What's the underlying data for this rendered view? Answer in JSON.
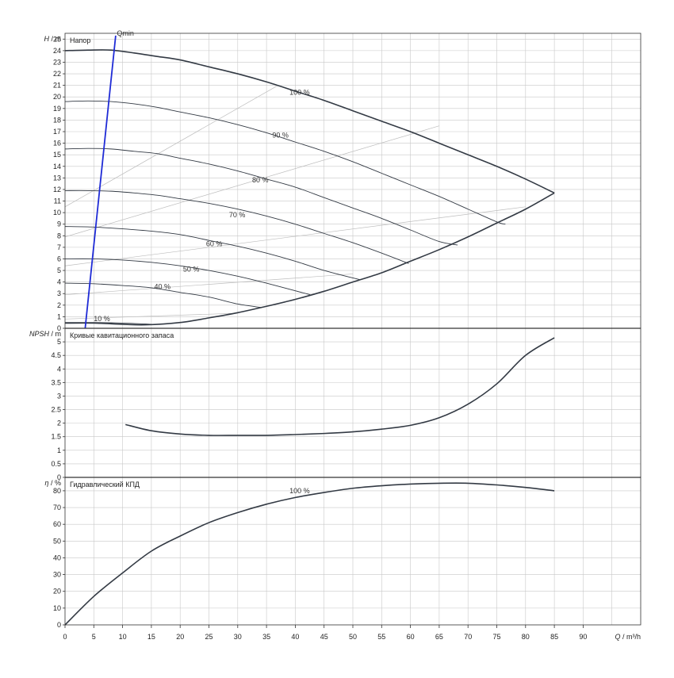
{
  "chart_data": {
    "type": "line",
    "x_axis": {
      "label": "Q",
      "unit": "m³/h",
      "range": [
        0,
        100
      ],
      "tick_step": 5,
      "ticks": [
        "0",
        "5",
        "10",
        "15",
        "20",
        "25",
        "30",
        "35",
        "40",
        "45",
        "50",
        "55",
        "60",
        "65",
        "70",
        "75",
        "80",
        "85",
        "90"
      ]
    },
    "panels": [
      {
        "id": "head",
        "title": "Напор",
        "y_label": "H",
        "y_unit": "m",
        "y_range": [
          0,
          25.5
        ],
        "y_step": 1,
        "y_ticks": [
          "0",
          "1",
          "2",
          "3",
          "4",
          "5",
          "6",
          "7",
          "8",
          "9",
          "10",
          "11",
          "12",
          "13",
          "14",
          "15",
          "16",
          "17",
          "18",
          "19",
          "20",
          "21",
          "22",
          "23",
          "24",
          "25"
        ],
        "series": [
          {
            "name": "100 %",
            "label_at": [
              39,
              20.2
            ],
            "bold": true,
            "x": [
              0,
              4,
              8,
              12,
              16,
              20,
              25,
              30,
              35,
              40,
              45,
              50,
              55,
              60,
              65,
              70,
              75,
              80,
              85
            ],
            "y": [
              24.0,
              24.05,
              24.05,
              23.8,
              23.5,
              23.2,
              22.6,
              22.0,
              21.3,
              20.5,
              19.7,
              18.8,
              17.9,
              17.0,
              16.0,
              15.0,
              14.0,
              12.9,
              11.7
            ]
          },
          {
            "name": "90 %",
            "label_at": [
              36,
              16.5
            ],
            "x": [
              0,
              4,
              8,
              12,
              16,
              20,
              25,
              30,
              35,
              40,
              45,
              50,
              55,
              60,
              65,
              70,
              75,
              76.5
            ],
            "y": [
              19.6,
              19.65,
              19.6,
              19.4,
              19.1,
              18.7,
              18.2,
              17.6,
              16.9,
              16.1,
              15.3,
              14.4,
              13.4,
              12.4,
              11.4,
              10.3,
              9.2,
              9.0
            ]
          },
          {
            "name": "80 %",
            "label_at": [
              32.5,
              12.6
            ],
            "x": [
              0,
              4,
              8,
              12,
              16,
              20,
              25,
              30,
              35,
              40,
              45,
              50,
              55,
              60,
              65,
              68.2
            ],
            "y": [
              15.5,
              15.55,
              15.5,
              15.3,
              15.1,
              14.7,
              14.2,
              13.6,
              12.9,
              12.2,
              11.3,
              10.4,
              9.5,
              8.5,
              7.5,
              7.2
            ]
          },
          {
            "name": "70 %",
            "label_at": [
              28.5,
              9.6
            ],
            "x": [
              0,
              4,
              8,
              12,
              16,
              20,
              25,
              30,
              35,
              40,
              45,
              50,
              55,
              59.7
            ],
            "y": [
              11.9,
              11.9,
              11.85,
              11.7,
              11.5,
              11.2,
              10.8,
              10.3,
              9.7,
              9.0,
              8.2,
              7.4,
              6.5,
              5.6
            ]
          },
          {
            "name": "60 %",
            "label_at": [
              24.5,
              7.1
            ],
            "x": [
              0,
              5,
              10,
              15,
              20,
              25,
              30,
              35,
              40,
              45,
              51.2
            ],
            "y": [
              8.8,
              8.75,
              8.6,
              8.4,
              8.1,
              7.6,
              7.1,
              6.5,
              5.8,
              5.0,
              4.2
            ]
          },
          {
            "name": "50 %",
            "label_at": [
              20.5,
              4.9
            ],
            "x": [
              0,
              5,
              10,
              15,
              20,
              25,
              30,
              35,
              42.6
            ],
            "y": [
              6.0,
              6.0,
              5.9,
              5.7,
              5.4,
              5.0,
              4.5,
              3.9,
              2.9
            ]
          },
          {
            "name": "40 %",
            "label_at": [
              15.5,
              3.4
            ],
            "x": [
              0,
              5,
              10,
              15,
              20,
              25,
              30,
              34.1
            ],
            "y": [
              3.9,
              3.85,
              3.7,
              3.5,
              3.1,
              2.7,
              2.1,
              1.8
            ]
          },
          {
            "name": "10 %",
            "label_at": [
              5,
              0.6
            ],
            "x": [
              0,
              5,
              10,
              15
            ],
            "y": [
              0.5,
              0.5,
              0.45,
              0.35
            ]
          },
          {
            "name": "",
            "role": "min-speed-envelope",
            "bold": true,
            "x": [
              0,
              5,
              10,
              14,
              20,
              25,
              30,
              35,
              40,
              45,
              50,
              55,
              60,
              65,
              70,
              75,
              80,
              85
            ],
            "y": [
              0.45,
              0.45,
              0.35,
              0.3,
              0.5,
              0.9,
              1.35,
              1.9,
              2.5,
              3.2,
              4.0,
              4.8,
              5.8,
              6.8,
              7.9,
              9.1,
              10.3,
              11.7
            ]
          },
          {
            "name": "Qmin",
            "role": "qmin-line",
            "color": "#1f2bd6",
            "label_at": [
              9,
              25.3
            ],
            "x": [
              3.5,
              8.8
            ],
            "y": [
              0,
              25.3
            ]
          }
        ],
        "helper_lines": [
          {
            "x": [
              0,
              37
            ],
            "y": [
              10.5,
              21
            ]
          },
          {
            "x": [
              0,
              65
            ],
            "y": [
              7.9,
              17.5
            ]
          },
          {
            "x": [
              0,
              80
            ],
            "y": [
              5.4,
              10.5
            ]
          },
          {
            "x": [
              0,
              50
            ],
            "y": [
              2.9,
              4.7
            ]
          },
          {
            "x": [
              0,
              30
            ],
            "y": [
              0.8,
              1.3
            ]
          }
        ]
      },
      {
        "id": "npsh",
        "title": "Кривые кавитационного запаса",
        "y_label": "NPSH",
        "y_unit": "m",
        "y_range": [
          0,
          5.5
        ],
        "y_step": 0.5,
        "y_ticks": [
          "0",
          "0.5",
          "1",
          "1.5",
          "2",
          "2.5",
          "3",
          "3.5",
          "4",
          "4.5",
          "5"
        ],
        "series": [
          {
            "name": "",
            "bold": true,
            "x": [
              10.5,
              15,
              20,
              25,
              30,
              35,
              40,
              45,
              50,
              55,
              60,
              65,
              70,
              75,
              80,
              85
            ],
            "y": [
              1.95,
              1.72,
              1.6,
              1.55,
              1.55,
              1.55,
              1.58,
              1.62,
              1.68,
              1.78,
              1.92,
              2.2,
              2.7,
              3.45,
              4.5,
              5.15
            ]
          }
        ]
      },
      {
        "id": "eff",
        "title": "Гидравлический КПД",
        "y_label": "η",
        "y_unit": "%",
        "y_range": [
          0,
          88
        ],
        "y_step": 10,
        "y_ticks": [
          "0",
          "10",
          "20",
          "30",
          "40",
          "50",
          "60",
          "70",
          "80"
        ],
        "series": [
          {
            "name": "100 %",
            "label_at": [
              39,
              78.5
            ],
            "bold": true,
            "x": [
              0,
              5,
              10,
              15,
              20,
              25,
              30,
              35,
              40,
              45,
              50,
              55,
              60,
              65,
              70,
              75,
              80,
              85
            ],
            "y": [
              0,
              17,
              31,
              44,
              53,
              61,
              67,
              72,
              76,
              79,
              81.5,
              83,
              84,
              84.5,
              84.5,
              83.5,
              82,
              80
            ]
          }
        ]
      }
    ]
  }
}
